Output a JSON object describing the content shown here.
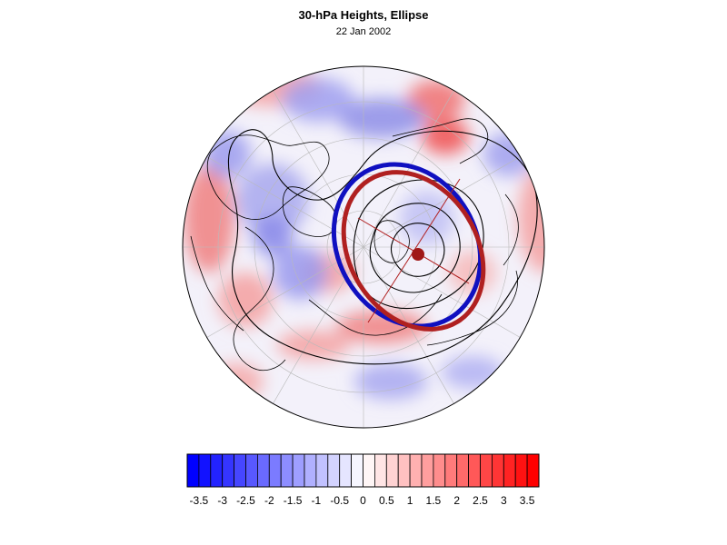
{
  "header": {
    "title": "30-hPa Heights, Ellipse",
    "date": "22 Jan 2002"
  },
  "map": {
    "projection": "polar stereographic (north pole)",
    "field": "30-hPa height anomaly",
    "overlays": [
      "coastlines",
      "lat-lon grid",
      "height contours (black)",
      "ellipse fit (blue)",
      "ellipse fit (dark red)",
      "ellipse center marker",
      "ellipse axes"
    ],
    "colors": {
      "ellipse_observed": "#1010c0",
      "ellipse_fit": "#b02020",
      "contour": "#000000",
      "center_marker": "#a01818"
    }
  },
  "colorbar": {
    "tick_labels": [
      "-3.5",
      "-3",
      "-2.5",
      "-2",
      "-1.5",
      "-1",
      "-0.5",
      "0",
      "0.5",
      "1",
      "1.5",
      "2",
      "2.5",
      "3",
      "3.5"
    ],
    "min": -3.75,
    "max": 3.75,
    "step": 0.25,
    "negative_color": "#0000ff",
    "neutral_color": "#ffffff",
    "positive_color": "#ff0000"
  }
}
